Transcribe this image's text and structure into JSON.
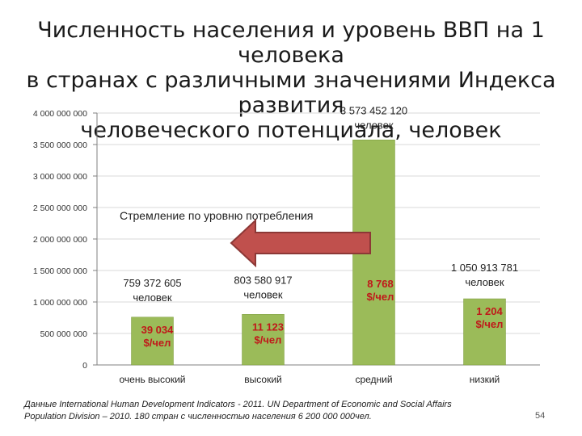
{
  "title": {
    "lines": [
      "Численность населения и уровень ВВП на 1 человека",
      "в странах с различными значениями Индекса развития",
      "человеческого потенциала, человек"
    ]
  },
  "chart_data": {
    "type": "bar",
    "categories": [
      "очень высокий",
      "высокий",
      "средний",
      "низкий"
    ],
    "values": [
      759372605,
      803580917,
      3573452120,
      1050913781
    ],
    "population_labels": [
      [
        "759 372 605",
        "человек"
      ],
      [
        "803 580 917",
        "человек"
      ],
      [
        "3 573 452 120",
        "человек"
      ],
      [
        "1 050 913 781",
        "человек"
      ]
    ],
    "gdp_labels": [
      [
        "39 034",
        "$/чел"
      ],
      [
        "11 123",
        "$/чел"
      ],
      [
        "8 768",
        "$/чел"
      ],
      [
        "1 204",
        "$/чел"
      ]
    ],
    "ylim": [
      0,
      4000000000
    ],
    "yticks": [
      0,
      500000000,
      1000000000,
      1500000000,
      2000000000,
      2500000000,
      3000000000,
      3500000000,
      4000000000
    ],
    "ytick_labels": [
      "0",
      "500 000 000",
      "1 000 000 000",
      "1 500 000 000",
      "2 000 000 000",
      "2 500 000 000",
      "3 000 000 000",
      "3 500 000 000",
      "4 000 000 000"
    ],
    "grid": true,
    "annotation": "Стремление по уровню потребления",
    "colors": {
      "bar": "#9bbb59",
      "bar_edge": "#7a9a3c",
      "gdp_text": "#c0181a",
      "arrow": "#c0504d",
      "arrow_edge": "#8c3836",
      "grid": "#d9d9d9"
    }
  },
  "footnote": {
    "line1": "Данные International Human Development Indicators - 2011. UN Department of Economic and Social Affairs",
    "line2": "Population Division – 2010. 180 стран с численностью населения 6 200 000 000чел."
  },
  "page_number": "54"
}
